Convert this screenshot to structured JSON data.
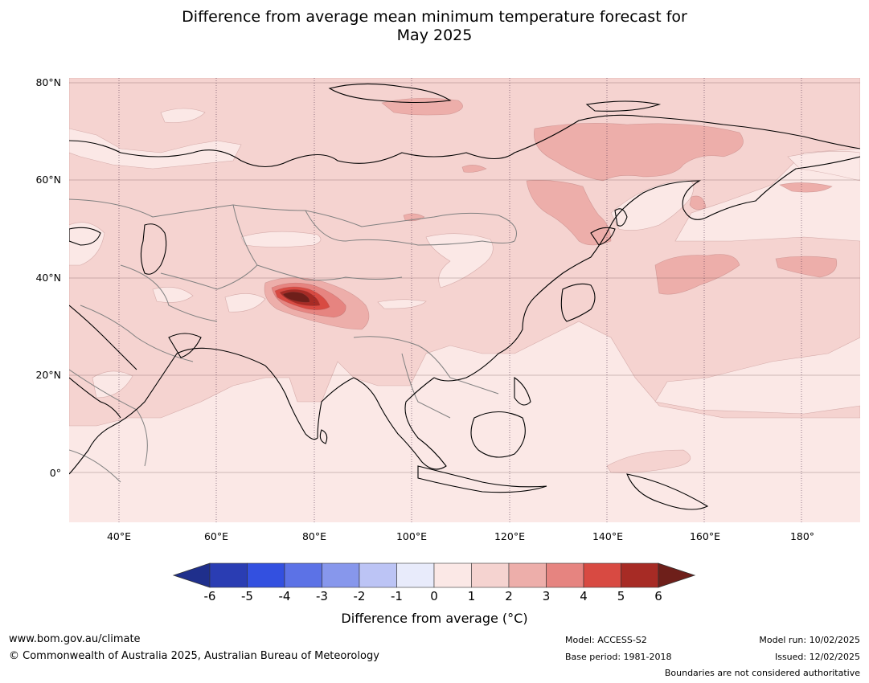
{
  "title": {
    "line1": "Difference from average mean minimum temperature forecast for",
    "line2": "May 2025"
  },
  "map": {
    "lat_labels": [
      "80°N",
      "60°N",
      "40°N",
      "20°N",
      "0°"
    ],
    "lon_labels": [
      "40°E",
      "60°E",
      "80°E",
      "100°E",
      "120°E",
      "140°E",
      "160°E",
      "180°"
    ],
    "colors": {
      "ocean_base": "#fbe8e6",
      "band_0_1": "#fbe8e6",
      "band_1_2": "#f5d3d0",
      "band_2_3": "#edaeaa",
      "band_3_4": "#e68480",
      "band_4_5": "#d84a42",
      "band_5_6": "#a72b25",
      "band_gt6": "#6e1f1a",
      "coast": "#000000",
      "border": "#808080"
    }
  },
  "colorbar": {
    "ticks": [
      "-6",
      "-5",
      "-4",
      "-3",
      "-2",
      "-1",
      "0",
      "1",
      "2",
      "3",
      "4",
      "5",
      "6"
    ],
    "colors": [
      "#1f2f8c",
      "#2a3db3",
      "#3350e0",
      "#5c72e6",
      "#8797ec",
      "#bcc4f5",
      "#e8ebfb",
      "#fbe8e6",
      "#f5d3d0",
      "#edaeaa",
      "#e68480",
      "#d84a42",
      "#a72b25",
      "#6e1f1a"
    ],
    "label": "Difference from average (°C)"
  },
  "footer": {
    "website": "www.bom.gov.au/climate",
    "copyright": "© Commonwealth of Australia 2025, Australian Bureau of Meteorology",
    "model": "Model: ACCESS-S2",
    "base_period": "Base period: 1981-2018",
    "model_run": "Model run: 10/02/2025",
    "issued": "Issued: 12/02/2025",
    "disclaimer": "Boundaries are not considered authoritative"
  }
}
